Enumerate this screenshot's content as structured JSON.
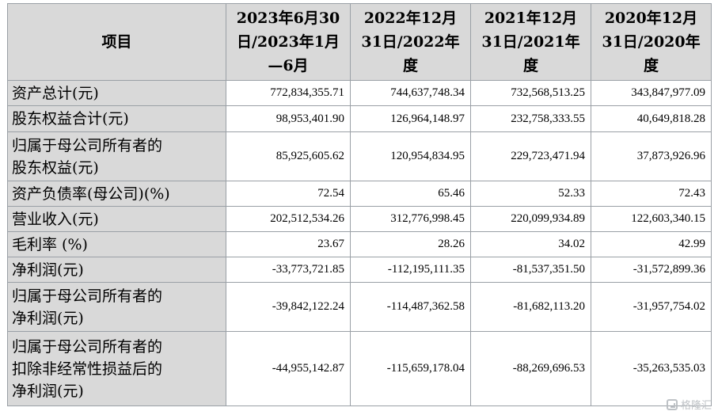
{
  "table": {
    "header": {
      "label": "项目",
      "columns": [
        [
          "2023年6月30",
          "日/2023年1月",
          "—6月"
        ],
        [
          "2022年12月",
          "31日/2022年",
          "度"
        ],
        [
          "2021年12月",
          "31日/2021年",
          "度"
        ],
        [
          "2020年12月",
          "31日/2020年",
          "度"
        ]
      ]
    },
    "rows": [
      {
        "label": [
          "资产总计(元)"
        ],
        "values": [
          "772,834,355.71",
          "744,637,748.34",
          "732,568,513.25",
          "343,847,977.09"
        ]
      },
      {
        "label": [
          "股东权益合计(元)"
        ],
        "values": [
          "98,953,401.90",
          "126,964,148.97",
          "232,758,333.55",
          "40,649,818.28"
        ]
      },
      {
        "label": [
          "归属于母公司所有者的",
          "股东权益(元)"
        ],
        "values": [
          "85,925,605.62",
          "120,954,834.95",
          "229,723,471.94",
          "37,873,926.96"
        ]
      },
      {
        "label": [
          "资产负债率(母公司)(%)"
        ],
        "values": [
          "72.54",
          "65.46",
          "52.33",
          "72.43"
        ]
      },
      {
        "label": [
          "营业收入(元)"
        ],
        "values": [
          "202,512,534.26",
          "312,776,998.45",
          "220,099,934.89",
          "122,603,340.15"
        ]
      },
      {
        "label": [
          "毛利率 (%)"
        ],
        "values": [
          "23.67",
          "28.26",
          "34.02",
          "42.99"
        ]
      },
      {
        "label": [
          "净利润(元)"
        ],
        "values": [
          "-33,773,721.85",
          "-112,195,111.35",
          "-81,537,351.50",
          "-31,572,899.36"
        ]
      },
      {
        "label": [
          "归属于母公司所有者的",
          "净利润(元)"
        ],
        "values": [
          "-39,842,122.24",
          "-114,487,362.58",
          "-81,682,113.20",
          "-31,957,754.02"
        ]
      },
      {
        "label": [
          "归属于母公司所有者的",
          "扣除非经常性损益后的",
          "净利润(元)"
        ],
        "values": [
          "-44,955,142.87",
          "-115,659,178.04",
          "-88,269,696.53",
          "-35,263,535.03"
        ]
      }
    ]
  },
  "watermark": {
    "text": "格隆汇",
    "icon": "glh-logo-icon",
    "color": "#b8bcc0"
  }
}
